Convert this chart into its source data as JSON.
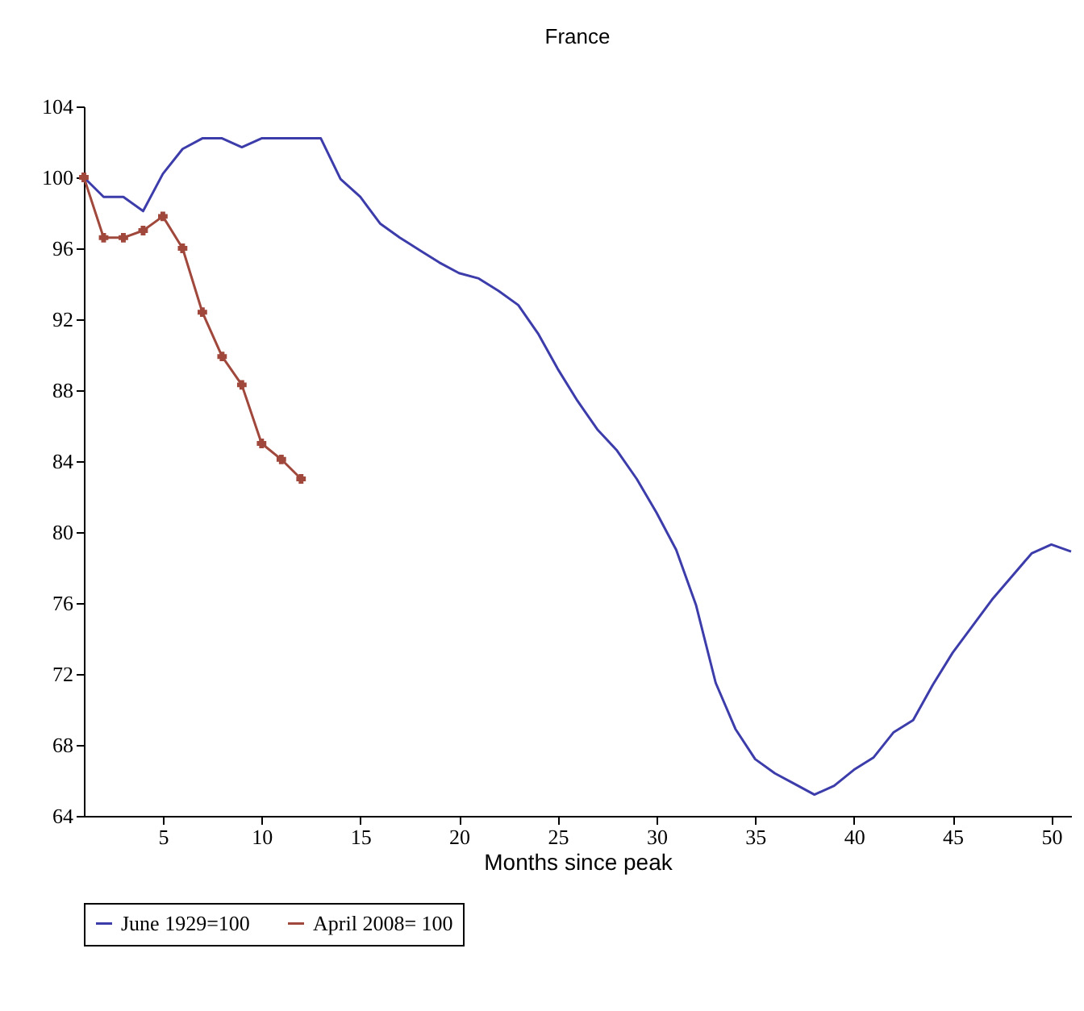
{
  "chart_data": {
    "type": "line",
    "title": "France",
    "xlabel": "Months since peak",
    "x": [
      1,
      2,
      3,
      4,
      5,
      6,
      7,
      8,
      9,
      10,
      11,
      12,
      13,
      14,
      15,
      16,
      17,
      18,
      19,
      20,
      21,
      22,
      23,
      24,
      25,
      26,
      27,
      28,
      29,
      30,
      31,
      32,
      33,
      34,
      35,
      36,
      37,
      38,
      39,
      40,
      41,
      42,
      43,
      44,
      45,
      46,
      47,
      48,
      49,
      50,
      51
    ],
    "series": [
      {
        "name": "June 1929=100",
        "color": "#3c3caa",
        "marker": "none",
        "values": [
          100,
          98.9,
          98.9,
          98.1,
          100.2,
          101.6,
          102.2,
          102.2,
          101.7,
          102.2,
          102.2,
          102.2,
          102.2,
          99.9,
          98.9,
          97.4,
          96.6,
          95.9,
          95.2,
          94.6,
          94.3,
          93.6,
          92.8,
          91.2,
          89.2,
          87.4,
          85.8,
          84.6,
          83,
          81.1,
          79,
          75.9,
          71.5,
          68.9,
          67.2,
          66.4,
          65.8,
          65.2,
          65.7,
          66.6,
          67.3,
          68.7,
          69.4,
          71.4,
          73.2,
          74.7,
          76.2,
          77.5,
          78.8,
          79.3,
          78.9
        ]
      },
      {
        "name": "April 2008= 100",
        "color": "#a0483c",
        "marker": "cross",
        "x": [
          1,
          2,
          3,
          4,
          5,
          6,
          7,
          8,
          9,
          10,
          11,
          12
        ],
        "values": [
          100,
          96.6,
          96.6,
          97,
          97.8,
          96,
          92.4,
          89.9,
          88.3,
          85,
          84.1,
          83
        ]
      }
    ],
    "xlim": [
      1,
      51
    ],
    "xticks": [
      5,
      10,
      15,
      20,
      25,
      30,
      35,
      40,
      45,
      50
    ],
    "ylim": [
      64,
      104
    ],
    "yticks": [
      64,
      68,
      72,
      76,
      80,
      84,
      88,
      92,
      96,
      100,
      104
    ],
    "grid": false,
    "legend": "bottom",
    "line_style": "solid"
  }
}
